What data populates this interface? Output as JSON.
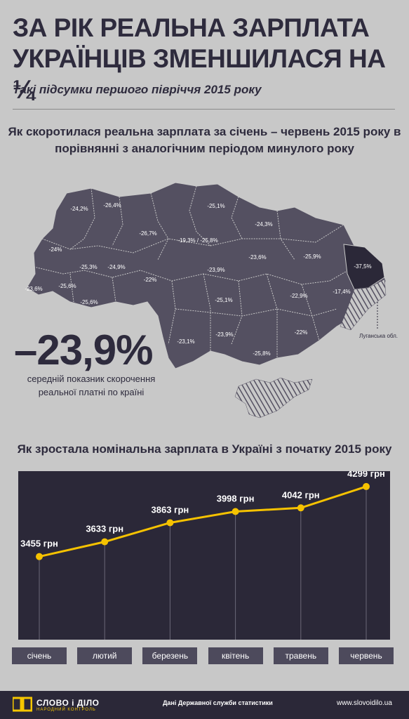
{
  "header": {
    "title": "ЗА РІК РЕАЛЬНА ЗАРПЛАТА УКРАЇНЦІВ ЗМЕНШИЛАСЯ НА ¼",
    "subtitle": "Такі підсумки першого півріччя 2015 року"
  },
  "map": {
    "title": "Як скоротилася реальна зарплата за січень – червень 2015 року в порівнянні з аналогічним періодом минулого року",
    "average_value": "–23,9%",
    "average_desc": "середній показник скорочення реальної платні по країні",
    "lugansk_label": "Луганська обл.",
    "regions": [
      "-24,2%",
      "-26,4%",
      "-25,1%",
      "-24,3%",
      "-24%",
      "-26,7%",
      "-19,3% / -25,8%",
      "-23,6%",
      "-25,9%",
      "-25,3%",
      "-24,9%",
      "-37,5%",
      "-23,6%",
      "-25,6%",
      "-22%",
      "-23,9%",
      "-25,6%",
      "-25,1%",
      "-22,9%",
      "-17,4%",
      "-23,1%",
      "-23,9%",
      "-22%",
      "-25,8%"
    ],
    "colors": {
      "region_fill": "#545061",
      "highlight_fill": "#2b2838",
      "border": "#c8c8c8"
    }
  },
  "chart_data": {
    "type": "line",
    "title": "Як зростала номінальна зарплата в Україні з початку 2015 року",
    "categories": [
      "січень",
      "лютий",
      "березень",
      "квітень",
      "травень",
      "червень"
    ],
    "values": [
      3455,
      3633,
      3863,
      3998,
      4042,
      4299
    ],
    "value_labels": [
      "3455 грн",
      "3633 грн",
      "3863 грн",
      "3998 грн",
      "4042 грн",
      "4299 грн"
    ],
    "colors": {
      "line": "#f5c200",
      "background": "#2b2838",
      "grid": "#6b6878"
    }
  },
  "footer": {
    "logo_text": "СЛОВО і ДІЛО",
    "logo_sub": "НАРОДНИЙ КОНТРОЛЬ",
    "source": "Дані Державної служби статистики",
    "site": "www.slovoidilo.ua"
  }
}
